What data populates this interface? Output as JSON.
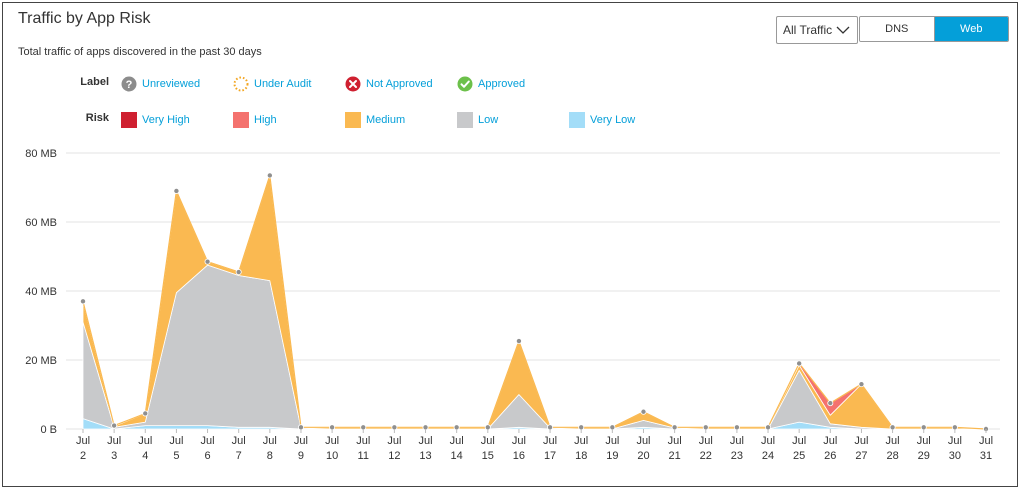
{
  "header": {
    "title": "Traffic by App Risk",
    "subtitle": "Total traffic of apps discovered in the past 30 days"
  },
  "controls": {
    "traffic_filter": "All Traffic",
    "tabs": [
      {
        "label": "DNS",
        "active": false
      },
      {
        "label": "Web",
        "active": true
      }
    ]
  },
  "legend": {
    "label_heading": "Label",
    "labels": [
      {
        "name": "Unreviewed",
        "icon": "question-circle-icon",
        "color": "#8c8c8c"
      },
      {
        "name": "Under Audit",
        "icon": "dotted-circle-icon",
        "color": "#f3a622"
      },
      {
        "name": "Not Approved",
        "icon": "x-circle-icon",
        "color": "#cf2030"
      },
      {
        "name": "Approved",
        "icon": "check-circle-icon",
        "color": "#6cc04a"
      }
    ],
    "risk_heading": "Risk",
    "risks": [
      {
        "name": "Very High",
        "color": "#cf2030"
      },
      {
        "name": "High",
        "color": "#f4726e"
      },
      {
        "name": "Medium",
        "color": "#fab951"
      },
      {
        "name": "Low",
        "color": "#c8c9cb"
      },
      {
        "name": "Very Low",
        "color": "#a3ddf8"
      }
    ]
  },
  "chart_data": {
    "type": "area",
    "stacked": true,
    "title": "Traffic by App Risk",
    "x": [
      "Jul 2",
      "Jul 3",
      "Jul 4",
      "Jul 5",
      "Jul 6",
      "Jul 7",
      "Jul 8",
      "Jul 9",
      "Jul 10",
      "Jul 11",
      "Jul 12",
      "Jul 13",
      "Jul 14",
      "Jul 15",
      "Jul 16",
      "Jul 17",
      "Jul 18",
      "Jul 19",
      "Jul 20",
      "Jul 21",
      "Jul 22",
      "Jul 23",
      "Jul 24",
      "Jul 25",
      "Jul 26",
      "Jul 27",
      "Jul 28",
      "Jul 29",
      "Jul 30",
      "Jul 31"
    ],
    "x_tick_month": "Jul",
    "x_tick_days": [
      "2",
      "3",
      "4",
      "5",
      "6",
      "7",
      "8",
      "9",
      "10",
      "11",
      "12",
      "13",
      "14",
      "15",
      "16",
      "17",
      "18",
      "19",
      "20",
      "21",
      "22",
      "23",
      "24",
      "25",
      "26",
      "27",
      "28",
      "29",
      "30",
      "31"
    ],
    "yticks": [
      "0 B",
      "20 MB",
      "40 MB",
      "60 MB",
      "80 MB"
    ],
    "ylim": [
      0,
      80
    ],
    "y_unit": "MB",
    "grid": true,
    "series": [
      {
        "name": "Very Low",
        "color": "#a3ddf8",
        "values": [
          3,
          0,
          1,
          1,
          1,
          0.5,
          0.5,
          0,
          0,
          0,
          0,
          0,
          0,
          0,
          0.5,
          0,
          0,
          0,
          0.5,
          0,
          0,
          0,
          0,
          2,
          0.5,
          0,
          0,
          0,
          0,
          0
        ]
      },
      {
        "name": "Low",
        "color": "#c8c9cb",
        "values": [
          28,
          0.5,
          1,
          38.5,
          46.5,
          44,
          42.5,
          0.3,
          0,
          0,
          0,
          0,
          0,
          0,
          9.5,
          0.3,
          0,
          0,
          2,
          0.3,
          0,
          0,
          0,
          15,
          1,
          0.5,
          0,
          0,
          0,
          0
        ]
      },
      {
        "name": "Medium",
        "color": "#fab951",
        "values": [
          6,
          0.3,
          2.5,
          29.5,
          1,
          1,
          30.5,
          0.2,
          0.5,
          0.5,
          0.5,
          0.5,
          0.5,
          0.5,
          15.5,
          0.2,
          0.5,
          0.5,
          2.5,
          0.2,
          0.5,
          0.5,
          0.5,
          1.5,
          2.5,
          12.5,
          0.5,
          0.5,
          0.5,
          0
        ]
      },
      {
        "name": "High",
        "color": "#f4726e",
        "values": [
          0,
          0,
          0,
          0,
          0,
          0,
          0,
          0,
          0,
          0,
          0,
          0,
          0,
          0,
          0,
          0,
          0,
          0,
          0,
          0,
          0,
          0,
          0,
          0.5,
          3.5,
          0,
          0,
          0,
          0,
          0
        ]
      },
      {
        "name": "Very High",
        "color": "#cf2030",
        "values": [
          0,
          0,
          0,
          0,
          0,
          0,
          0,
          0,
          0,
          0,
          0,
          0,
          0,
          0,
          0,
          0,
          0,
          0,
          0,
          0,
          0,
          0,
          0,
          0,
          0,
          0,
          0,
          0,
          0,
          0
        ]
      }
    ],
    "totals": [
      37,
      1,
      4.5,
      69,
      48.5,
      45.5,
      73.5,
      0.5,
      0.5,
      0.5,
      0.5,
      0.5,
      0.5,
      0.5,
      25.5,
      0.5,
      0.5,
      0.5,
      5,
      0.5,
      0.5,
      0.5,
      0.5,
      19,
      7.5,
      13,
      0.5,
      0.5,
      0.5,
      0
    ]
  }
}
